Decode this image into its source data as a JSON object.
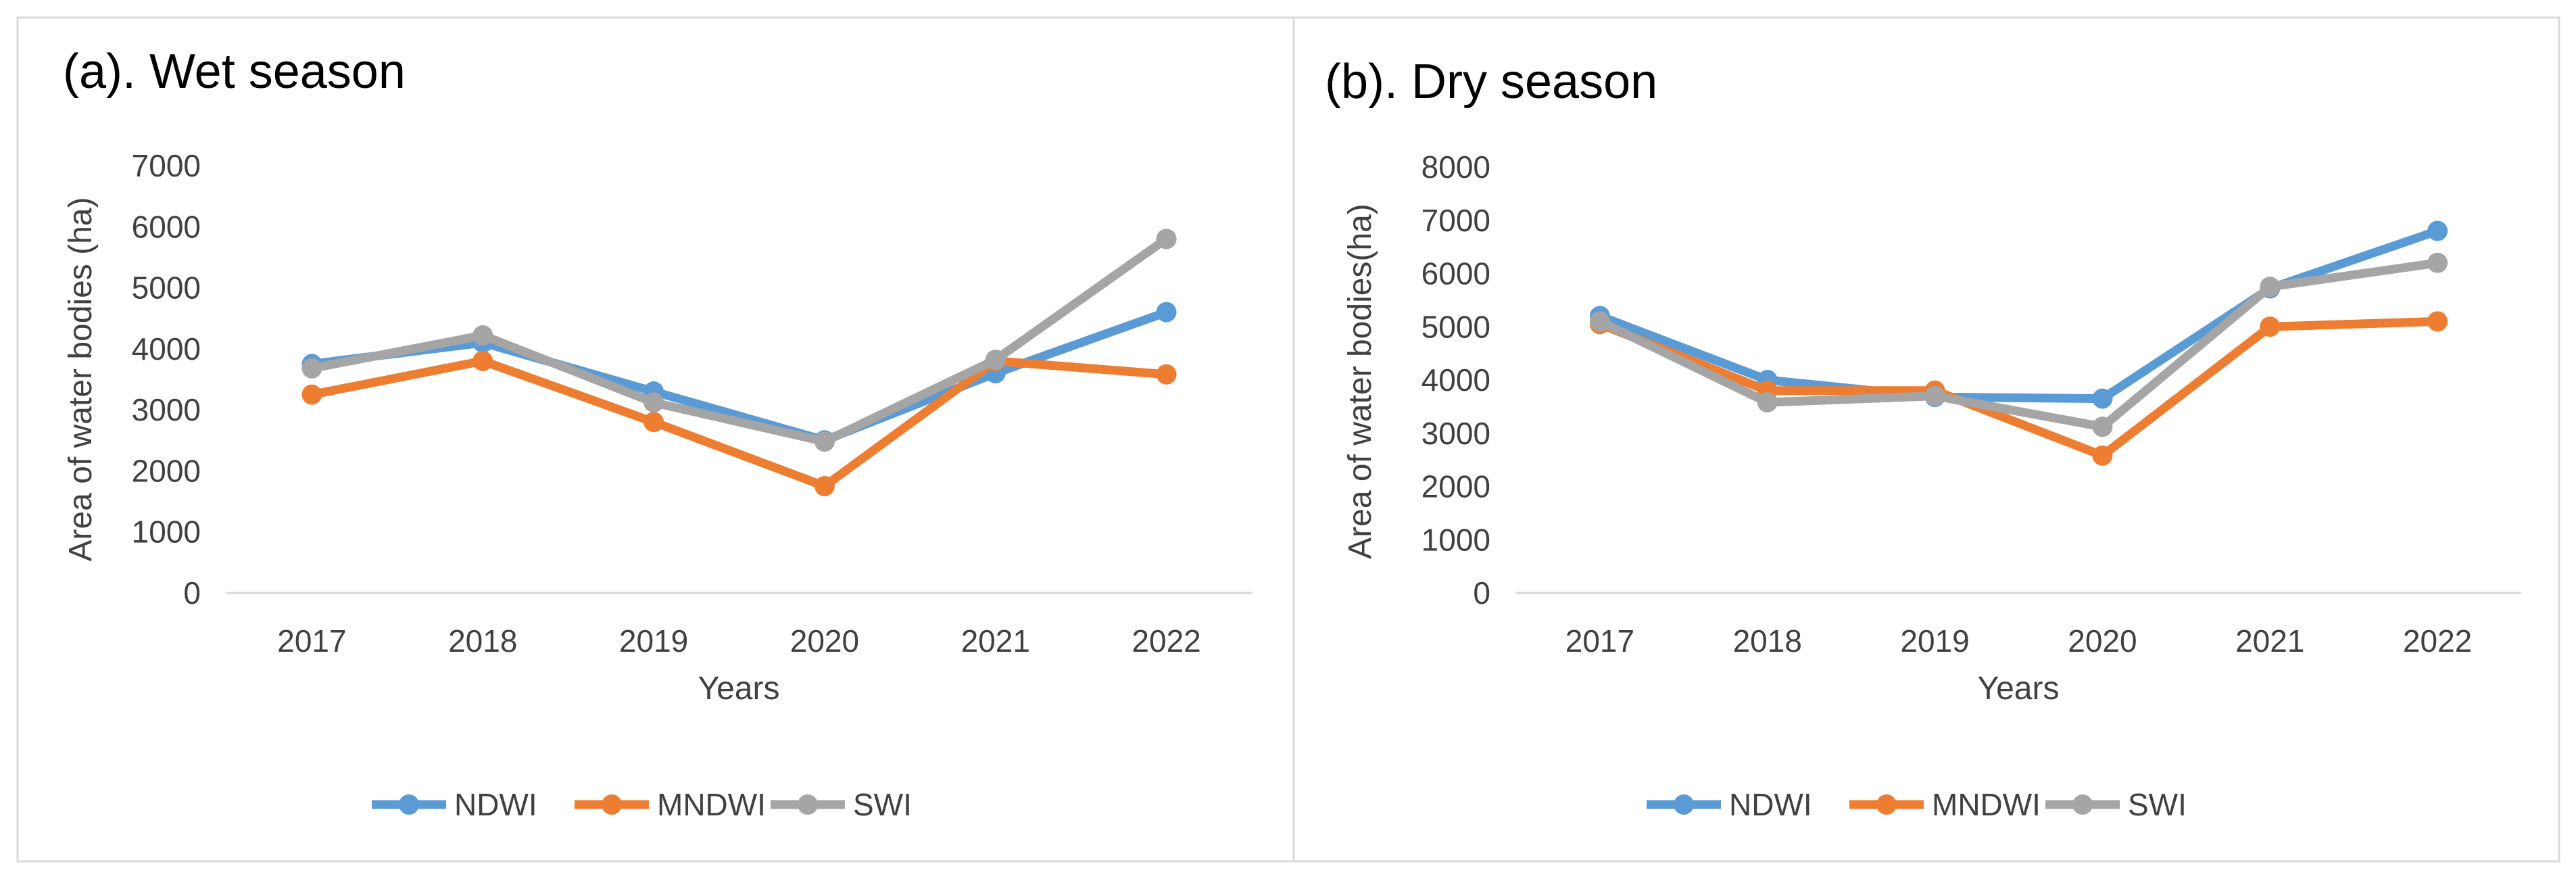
{
  "chart_data": [
    {
      "type": "line",
      "title": "(a). Wet season",
      "xlabel": "Years",
      "ylabel": "Area of water bodies (ha)",
      "categories": [
        "2017",
        "2018",
        "2019",
        "2020",
        "2021",
        "2022"
      ],
      "ylim": [
        0,
        7000
      ],
      "yticks": [
        0,
        1000,
        2000,
        3000,
        4000,
        5000,
        6000,
        7000
      ],
      "grid": false,
      "legend": "bottom",
      "series": [
        {
          "name": "NDWI",
          "color": "#5b9bd5",
          "values": [
            3750,
            4100,
            3300,
            2500,
            3600,
            4600
          ]
        },
        {
          "name": "MNDWI",
          "color": "#ed7d31",
          "values": [
            3250,
            3800,
            2800,
            1750,
            3800,
            3580
          ]
        },
        {
          "name": "SWI",
          "color": "#a5a5a5",
          "values": [
            3680,
            4220,
            3120,
            2480,
            3820,
            5800
          ]
        }
      ]
    },
    {
      "type": "line",
      "title": "(b). Dry season",
      "xlabel": "Years",
      "ylabel": "Area of water bodies(ha)",
      "categories": [
        "2017",
        "2018",
        "2019",
        "2020",
        "2021",
        "2022"
      ],
      "ylim": [
        0,
        8000
      ],
      "yticks": [
        0,
        1000,
        2000,
        3000,
        4000,
        5000,
        6000,
        7000,
        8000
      ],
      "grid": false,
      "legend": "bottom",
      "series": [
        {
          "name": "NDWI",
          "color": "#5b9bd5",
          "values": [
            5200,
            4000,
            3680,
            3650,
            5720,
            6800
          ]
        },
        {
          "name": "MNDWI",
          "color": "#ed7d31",
          "values": [
            5050,
            3800,
            3800,
            2580,
            5000,
            5100
          ]
        },
        {
          "name": "SWI",
          "color": "#a5a5a5",
          "values": [
            5100,
            3580,
            3700,
            3120,
            5750,
            6200
          ]
        }
      ]
    }
  ]
}
